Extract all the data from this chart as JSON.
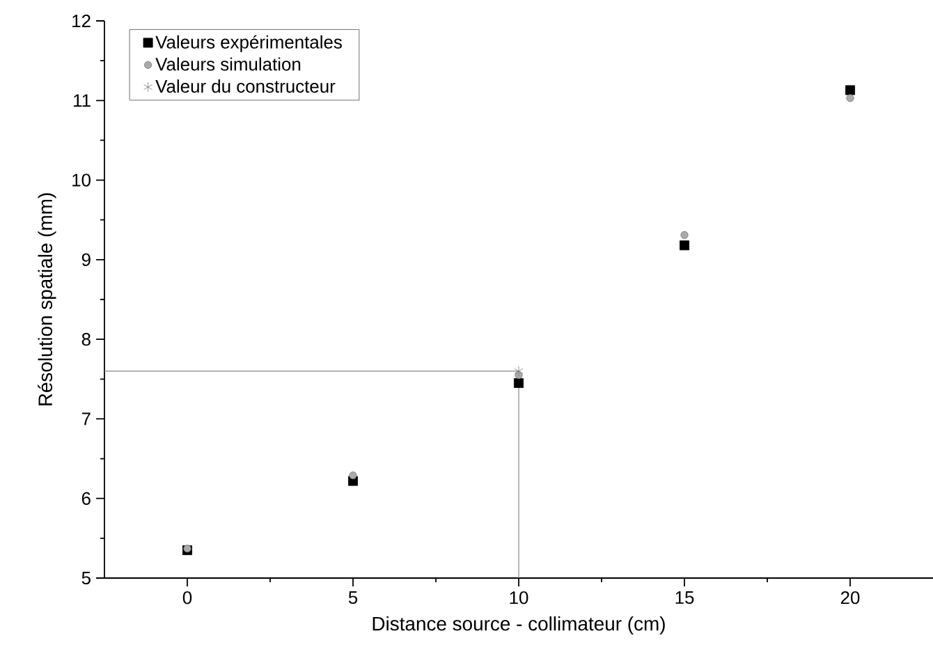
{
  "chart_data": {
    "type": "scatter",
    "xlabel": "Distance source - collimateur (cm)",
    "ylabel": "Résolution spatiale (mm)",
    "xlim": [
      -2.5,
      22.5
    ],
    "xticks": [
      0,
      5,
      10,
      15,
      20
    ],
    "ylim": [
      5,
      12
    ],
    "yticks": [
      5,
      6,
      7,
      8,
      9,
      10,
      11,
      12
    ],
    "legend": "top left",
    "series": [
      {
        "name": "Valeurs expérimentales",
        "color": "#000000",
        "marker": "square",
        "x": [
          0,
          5,
          10,
          15,
          20
        ],
        "values": [
          5.35,
          6.22,
          7.45,
          9.18,
          11.13
        ]
      },
      {
        "name": "Valeurs simulation",
        "color": "#aaaaaa",
        "marker": "circle",
        "x": [
          0,
          5,
          10,
          15,
          20
        ],
        "values": [
          5.37,
          6.29,
          7.55,
          9.31,
          11.03
        ]
      },
      {
        "name": "Valeur du constructeur",
        "color": "#777777",
        "marker": "cross",
        "x": [
          10
        ],
        "values": [
          7.6
        ]
      }
    ],
    "ref_lines": [
      {
        "axis": "y",
        "value": 7.6,
        "color": "#888888"
      },
      {
        "axis": "x",
        "value": 10,
        "color": "#888888"
      }
    ]
  }
}
